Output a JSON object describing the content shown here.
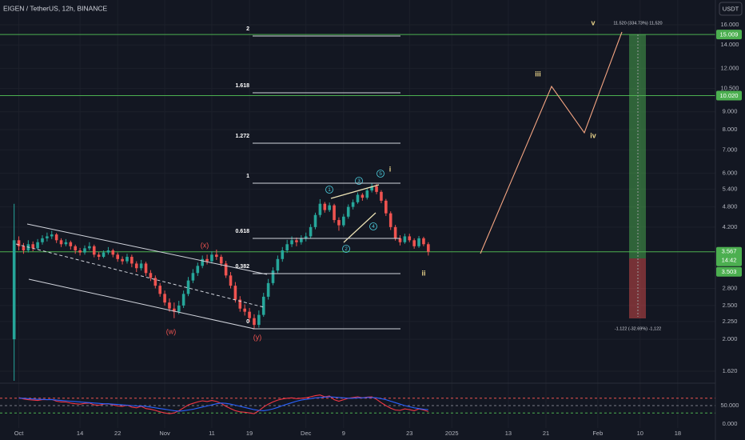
{
  "chart_data": {
    "type": "candlestick",
    "title": "EIGEN / TetherUS, 12h, BINANCE",
    "currency": "USDT",
    "up_color": "#26a69a",
    "down_color": "#ef5350",
    "log_scale": true,
    "grid": true,
    "xlim": [
      "2024-09-27",
      "2025-02-26"
    ],
    "xticks": [
      {
        "value": "2024-10-01",
        "label": "Oct"
      },
      {
        "value": "2024-10-14",
        "label": "14"
      },
      {
        "value": "2024-10-22",
        "label": "22"
      },
      {
        "value": "2024-11-01",
        "label": "Nov"
      },
      {
        "value": "2024-11-11",
        "label": "11"
      },
      {
        "value": "2024-11-19",
        "label": "19"
      },
      {
        "value": "2024-12-01",
        "label": "Dec"
      },
      {
        "value": "2024-12-09",
        "label": "9"
      },
      {
        "value": "2024-12-23",
        "label": "23"
      },
      {
        "value": "2025-01-01",
        "label": "2025"
      },
      {
        "value": "2025-01-13",
        "label": "13"
      },
      {
        "value": "2025-01-21",
        "label": "21"
      },
      {
        "value": "2025-02-01",
        "label": "Feb"
      },
      {
        "value": "2025-02-10",
        "label": "10"
      },
      {
        "value": "2025-02-18",
        "label": "18"
      }
    ],
    "ylim": [
      1.504,
      18.85
    ],
    "yticks": [
      {
        "value": 16,
        "label": "16.000"
      },
      {
        "value": 14,
        "label": "14.000"
      },
      {
        "value": 12,
        "label": "12.000"
      },
      {
        "value": 10.5,
        "label": "10.500"
      },
      {
        "value": 9,
        "label": "9.000"
      },
      {
        "value": 8,
        "label": "8.000"
      },
      {
        "value": 7,
        "label": "7.000"
      },
      {
        "value": 6,
        "label": "6.000"
      },
      {
        "value": 5.4,
        "label": "5.400"
      },
      {
        "value": 4.8,
        "label": "4.800"
      },
      {
        "value": 4.2,
        "label": "4.200"
      },
      {
        "value": 2.8,
        "label": "2.800"
      },
      {
        "value": 2.5,
        "label": "2.500"
      },
      {
        "value": 2.25,
        "label": "2.250"
      },
      {
        "value": 2,
        "label": "2.000"
      },
      {
        "value": 1.62,
        "label": "1.620"
      }
    ],
    "price_levels": [
      {
        "value": 15.009,
        "label": "15.009"
      },
      {
        "value": 10.02,
        "label": "10.020"
      }
    ],
    "last_price": {
      "value": 3.567,
      "label": "3.567"
    },
    "countdown": "14:42",
    "marker_label": "3.503",
    "target_label": "11.520 (334.73%) 11,520",
    "stop_label": "-1.122 (-32.69%) -1,122",
    "fib_labels": [
      "2",
      "1.618",
      "1.272",
      "1",
      "0.618",
      "0.382",
      "0"
    ],
    "waves": {
      "w": "(w)",
      "x": "(x)",
      "y": "(y)",
      "i": "i",
      "ii": "ii",
      "iii": "iii",
      "iv": "iv",
      "v": "v"
    },
    "circled": [
      "1",
      "2",
      "3",
      "4",
      "5"
    ],
    "x": [
      "2024-09-30",
      "2024-10-01",
      "2024-10-02",
      "2024-10-03",
      "2024-10-04",
      "2024-10-05",
      "2024-10-06",
      "2024-10-07",
      "2024-10-08",
      "2024-10-09",
      "2024-10-10",
      "2024-10-11",
      "2024-10-12",
      "2024-10-13",
      "2024-10-14",
      "2024-10-15",
      "2024-10-16",
      "2024-10-17",
      "2024-10-18",
      "2024-10-19",
      "2024-10-20",
      "2024-10-21",
      "2024-10-22",
      "2024-10-23",
      "2024-10-24",
      "2024-10-25",
      "2024-10-26",
      "2024-10-27",
      "2024-10-28",
      "2024-10-29",
      "2024-10-30",
      "2024-10-31",
      "2024-11-01",
      "2024-11-02",
      "2024-11-03",
      "2024-11-04",
      "2024-11-05",
      "2024-11-06",
      "2024-11-07",
      "2024-11-08",
      "2024-11-09",
      "2024-11-10",
      "2024-11-11",
      "2024-11-12",
      "2024-11-13",
      "2024-11-14",
      "2024-11-15",
      "2024-11-16",
      "2024-11-17",
      "2024-11-18",
      "2024-11-19",
      "2024-11-20",
      "2024-11-21",
      "2024-11-22",
      "2024-11-23",
      "2024-11-24",
      "2024-11-25",
      "2024-11-26",
      "2024-11-27",
      "2024-11-28",
      "2024-11-29",
      "2024-11-30",
      "2024-12-01",
      "2024-12-02",
      "2024-12-03",
      "2024-12-04",
      "2024-12-05",
      "2024-12-06",
      "2024-12-07",
      "2024-12-08",
      "2024-12-09",
      "2024-12-10",
      "2024-12-11",
      "2024-12-12",
      "2024-12-13",
      "2024-12-14",
      "2024-12-15",
      "2024-12-16",
      "2024-12-17",
      "2024-12-18",
      "2024-12-19",
      "2024-12-20",
      "2024-12-21",
      "2024-12-22",
      "2024-12-23",
      "2024-12-24",
      "2024-12-25",
      "2024-12-26",
      "2024-12-27"
    ],
    "ohlc": [
      [
        2.0,
        4.9,
        1.52,
        3.85
      ],
      [
        3.85,
        3.95,
        3.6,
        3.7
      ],
      [
        3.7,
        3.78,
        3.52,
        3.6
      ],
      [
        3.6,
        3.85,
        3.55,
        3.75
      ],
      [
        3.75,
        3.82,
        3.58,
        3.65
      ],
      [
        3.65,
        3.88,
        3.62,
        3.8
      ],
      [
        3.8,
        3.98,
        3.74,
        3.9
      ],
      [
        3.9,
        4.05,
        3.82,
        3.95
      ],
      [
        3.95,
        4.1,
        3.88,
        4.0
      ],
      [
        4.0,
        4.04,
        3.78,
        3.85
      ],
      [
        3.85,
        3.9,
        3.68,
        3.75
      ],
      [
        3.75,
        3.88,
        3.7,
        3.8
      ],
      [
        3.8,
        3.84,
        3.62,
        3.7
      ],
      [
        3.7,
        3.74,
        3.52,
        3.6
      ],
      [
        3.6,
        3.66,
        3.48,
        3.55
      ],
      [
        3.55,
        3.72,
        3.5,
        3.65
      ],
      [
        3.65,
        3.8,
        3.6,
        3.7
      ],
      [
        3.7,
        3.74,
        3.44,
        3.5
      ],
      [
        3.5,
        3.56,
        3.38,
        3.45
      ],
      [
        3.45,
        3.6,
        3.42,
        3.55
      ],
      [
        3.55,
        3.68,
        3.5,
        3.6
      ],
      [
        3.6,
        3.64,
        3.44,
        3.5
      ],
      [
        3.5,
        3.55,
        3.34,
        3.4
      ],
      [
        3.4,
        3.46,
        3.28,
        3.35
      ],
      [
        3.35,
        3.52,
        3.3,
        3.45
      ],
      [
        3.45,
        3.5,
        3.22,
        3.3
      ],
      [
        3.3,
        3.35,
        3.12,
        3.2
      ],
      [
        3.2,
        3.38,
        3.15,
        3.3
      ],
      [
        3.3,
        3.34,
        3.04,
        3.1
      ],
      [
        3.1,
        3.16,
        2.94,
        3.0
      ],
      [
        3.0,
        3.05,
        2.8,
        2.85
      ],
      [
        2.85,
        2.9,
        2.65,
        2.7
      ],
      [
        2.7,
        2.76,
        2.5,
        2.55
      ],
      [
        2.55,
        2.62,
        2.4,
        2.45
      ],
      [
        2.45,
        2.55,
        2.3,
        2.4
      ],
      [
        2.4,
        2.58,
        2.36,
        2.5
      ],
      [
        2.5,
        2.76,
        2.46,
        2.7
      ],
      [
        2.7,
        3.02,
        2.66,
        2.95
      ],
      [
        2.95,
        3.18,
        2.9,
        3.1
      ],
      [
        3.1,
        3.32,
        3.04,
        3.25
      ],
      [
        3.25,
        3.48,
        3.2,
        3.4
      ],
      [
        3.4,
        3.5,
        3.28,
        3.35
      ],
      [
        3.35,
        3.58,
        3.3,
        3.5
      ],
      [
        3.5,
        3.62,
        3.38,
        3.45
      ],
      [
        3.45,
        3.5,
        3.24,
        3.3
      ],
      [
        3.3,
        3.36,
        3.0,
        3.05
      ],
      [
        3.05,
        3.12,
        2.8,
        2.85
      ],
      [
        2.85,
        2.92,
        2.55,
        2.6
      ],
      [
        2.6,
        2.66,
        2.4,
        2.45
      ],
      [
        2.45,
        2.52,
        2.34,
        2.4
      ],
      [
        2.4,
        2.46,
        2.24,
        2.3
      ],
      [
        2.3,
        2.36,
        2.14,
        2.2
      ],
      [
        2.2,
        2.42,
        2.16,
        2.35
      ],
      [
        2.35,
        2.72,
        2.32,
        2.65
      ],
      [
        2.65,
        2.98,
        2.6,
        2.9
      ],
      [
        2.9,
        3.22,
        2.86,
        3.15
      ],
      [
        3.15,
        3.48,
        3.1,
        3.4
      ],
      [
        3.4,
        3.68,
        3.34,
        3.6
      ],
      [
        3.6,
        3.86,
        3.54,
        3.75
      ],
      [
        3.75,
        3.95,
        3.68,
        3.85
      ],
      [
        3.85,
        3.92,
        3.7,
        3.8
      ],
      [
        3.8,
        3.98,
        3.74,
        3.9
      ],
      [
        3.9,
        4.05,
        3.82,
        3.95
      ],
      [
        3.95,
        4.28,
        3.9,
        4.2
      ],
      [
        4.2,
        4.62,
        4.14,
        4.55
      ],
      [
        4.55,
        5.05,
        4.48,
        4.9
      ],
      [
        4.9,
        4.96,
        4.62,
        4.7
      ],
      [
        4.7,
        4.94,
        4.64,
        4.85
      ],
      [
        4.85,
        4.9,
        4.32,
        4.4
      ],
      [
        4.4,
        4.48,
        4.1,
        4.25
      ],
      [
        4.25,
        4.58,
        4.2,
        4.5
      ],
      [
        4.5,
        4.88,
        4.44,
        4.8
      ],
      [
        4.8,
        5.04,
        4.72,
        4.95
      ],
      [
        4.95,
        5.28,
        4.9,
        5.2
      ],
      [
        5.2,
        5.26,
        5.0,
        5.1
      ],
      [
        5.1,
        5.42,
        5.04,
        5.35
      ],
      [
        5.35,
        5.62,
        5.28,
        5.5
      ],
      [
        5.5,
        5.58,
        5.22,
        5.3
      ],
      [
        5.3,
        5.36,
        4.92,
        5.0
      ],
      [
        5.0,
        5.06,
        4.52,
        4.6
      ],
      [
        4.6,
        4.66,
        4.12,
        4.2
      ],
      [
        4.2,
        4.26,
        3.84,
        3.9
      ],
      [
        3.9,
        3.98,
        3.72,
        3.8
      ],
      [
        3.8,
        4.02,
        3.76,
        3.95
      ],
      [
        3.95,
        4.02,
        3.8,
        3.85
      ],
      [
        3.85,
        3.9,
        3.64,
        3.7
      ],
      [
        3.7,
        3.96,
        3.66,
        3.9
      ],
      [
        3.9,
        3.94,
        3.7,
        3.75
      ],
      [
        3.75,
        3.8,
        3.48,
        3.567
      ]
    ],
    "rsi": {
      "ylim": [
        -10.9,
        108.7
      ],
      "yticks": [
        {
          "value": 50,
          "label": "50.000"
        },
        {
          "value": 0,
          "label": "0.000"
        }
      ],
      "bands": [
        {
          "value": 70,
          "color": "#ef5350"
        },
        {
          "value": 50,
          "color": "#787b86"
        },
        {
          "value": 30,
          "color": "#4caf50"
        }
      ],
      "series": [
        {
          "color": "#f23645",
          "values": [
            null,
            72,
            68,
            66,
            65,
            64,
            66,
            66,
            67,
            62,
            60,
            60,
            57,
            55,
            54,
            56,
            57,
            52,
            51,
            54,
            55,
            52,
            49,
            48,
            51,
            46,
            44,
            48,
            42,
            40,
            37,
            33,
            30,
            28,
            30,
            36,
            44,
            52,
            56,
            60,
            63,
            61,
            64,
            61,
            56,
            48,
            42,
            36,
            33,
            32,
            30,
            28,
            36,
            46,
            54,
            60,
            65,
            68,
            70,
            71,
            69,
            70,
            71,
            74,
            77,
            79,
            74,
            76,
            66,
            62,
            66,
            70,
            72,
            74,
            71,
            73,
            74,
            67,
            58,
            50,
            43,
            38,
            37,
            41,
            39,
            36,
            41,
            38,
            34
          ]
        },
        {
          "color": "#2962ff",
          "values": [
            null,
            70,
            70,
            69,
            68,
            67,
            67,
            66,
            66,
            65,
            64,
            63,
            62,
            61,
            60,
            59,
            58,
            57,
            56,
            55,
            55,
            54,
            53,
            52,
            51,
            50,
            49,
            49,
            48,
            46,
            44,
            42,
            40,
            38,
            36,
            35,
            36,
            38,
            40,
            43,
            46,
            49,
            52,
            55,
            57,
            56,
            54,
            51,
            48,
            45,
            42,
            39,
            37,
            36,
            38,
            41,
            45,
            50,
            54,
            58,
            62,
            65,
            67,
            69,
            71,
            72,
            73,
            74,
            73,
            72,
            71,
            70,
            70,
            71,
            71,
            72,
            72,
            71,
            69,
            66,
            62,
            58,
            54,
            50,
            47,
            44,
            42,
            40,
            39
          ]
        }
      ]
    }
  }
}
